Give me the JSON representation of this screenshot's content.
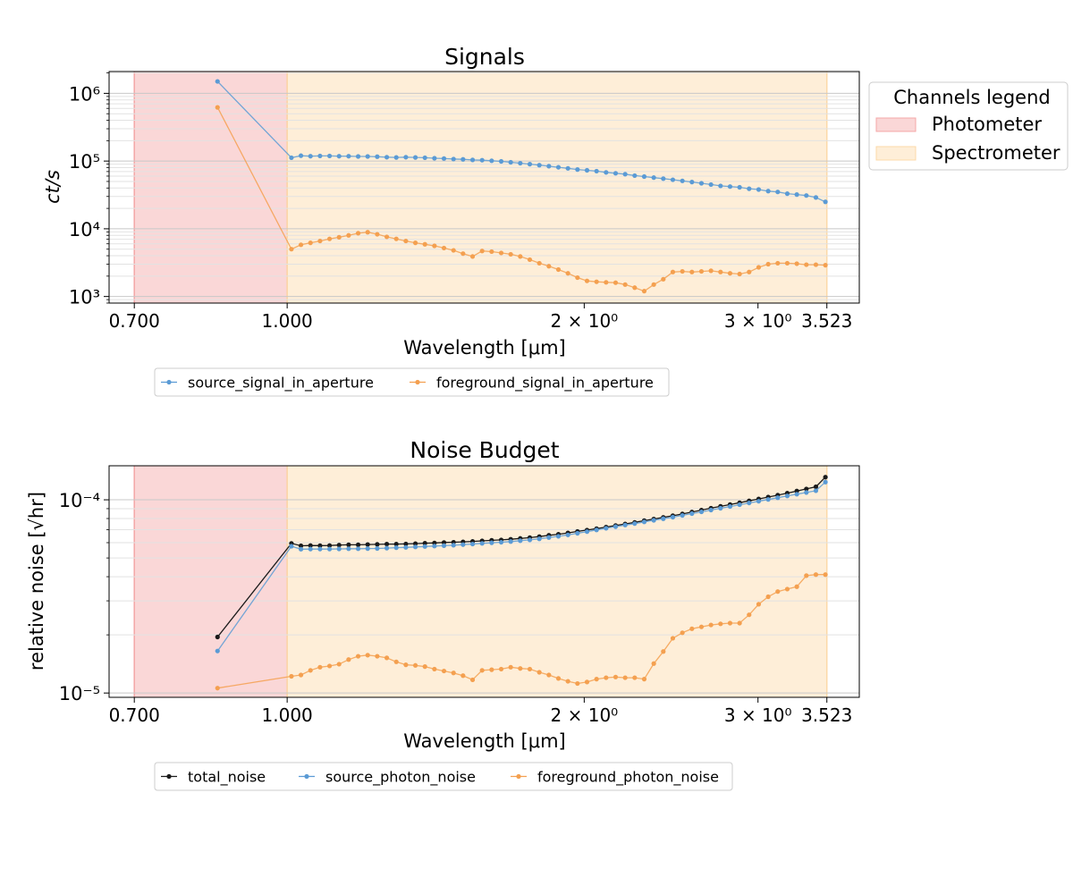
{
  "figure_legend": {
    "title": "Channels legend",
    "entries": [
      {
        "label": "Photometer",
        "color": "#f4a7a7"
      },
      {
        "label": "Spectrometer",
        "color": "#fcd9a8"
      }
    ]
  },
  "chart_data": [
    {
      "type": "line",
      "title": "Signals",
      "xlabel": "Wavelength [μm]",
      "ylabel": "ct/s",
      "xscale": "log",
      "yscale": "log",
      "xlim": [
        0.66,
        3.8
      ],
      "ylim": [
        800,
        2100000
      ],
      "xticks": [
        0.7,
        1.0,
        2.0,
        3.0,
        3.523
      ],
      "xticklabels": [
        "0.700",
        "1.000",
        "2 × 10⁰",
        "3 × 10⁰",
        "3.523"
      ],
      "yticks": [
        1000,
        10000,
        100000,
        1000000
      ],
      "yticklabels": [
        "10³",
        "10⁴",
        "10⁵",
        "10⁶"
      ],
      "grid": true,
      "channels": [
        {
          "name": "Photometer",
          "range": [
            0.7,
            1.0
          ],
          "color": "#f4a7a7"
        },
        {
          "name": "Spectrometer",
          "range": [
            1.0,
            3.523
          ],
          "color": "#fcd9a8"
        }
      ],
      "legend_location": "below",
      "x": [
        0.85,
        1.01,
        1.0327,
        1.0559,
        1.0797,
        1.104,
        1.1288,
        1.1542,
        1.1802,
        1.2067,
        1.2339,
        1.2617,
        1.29,
        1.3191,
        1.3488,
        1.3791,
        1.4101,
        1.4418,
        1.4743,
        1.5074,
        1.5414,
        1.576,
        1.6115,
        1.6478,
        1.6848,
        1.7227,
        1.7615,
        1.8011,
        1.8417,
        1.8831,
        1.9255,
        1.9688,
        2.0131,
        2.0584,
        2.1047,
        2.152,
        2.2005,
        2.25,
        2.3006,
        2.3524,
        2.4053,
        2.4594,
        2.5148,
        2.5714,
        2.6292,
        2.6884,
        2.7489,
        2.8107,
        2.874,
        2.9386,
        3.0048,
        3.0724,
        3.1415,
        3.2122,
        3.2845,
        3.3584,
        3.434,
        3.5112
      ],
      "series": [
        {
          "name": "source_signal_in_aperture",
          "color": "#5b9bd5",
          "values": [
            1500000,
            112000,
            120000,
            118000,
            119000,
            119000,
            118000,
            118000,
            117000,
            117000,
            116000,
            114000,
            113000,
            114000,
            113000,
            112000,
            110000,
            109000,
            107000,
            106000,
            104000,
            103000,
            101000,
            99000,
            96000,
            93000,
            90000,
            87000,
            84000,
            81000,
            78000,
            75000,
            73000,
            71000,
            68000,
            66000,
            64000,
            61000,
            59000,
            57000,
            55000,
            53000,
            51000,
            49000,
            47000,
            45000,
            43000,
            42000,
            41000,
            39000,
            38000,
            36000,
            35000,
            33000,
            32000,
            31000,
            29000,
            25000
          ]
        },
        {
          "name": "foreground_signal_in_aperture",
          "color": "#f4a050",
          "values": [
            620000,
            5000,
            5800,
            6200,
            6600,
            7100,
            7500,
            8000,
            8600,
            8900,
            8300,
            7600,
            7100,
            6600,
            6200,
            5900,
            5600,
            5200,
            4800,
            4300,
            3900,
            4700,
            4600,
            4400,
            4200,
            3900,
            3500,
            3100,
            2800,
            2500,
            2200,
            1900,
            1700,
            1650,
            1620,
            1600,
            1500,
            1350,
            1200,
            1500,
            1800,
            2300,
            2350,
            2300,
            2350,
            2400,
            2300,
            2200,
            2150,
            2300,
            2700,
            3000,
            3100,
            3100,
            3050,
            2950,
            2950,
            2900
          ]
        }
      ],
      "legend": [
        "source_signal_in_aperture",
        "foreground_signal_in_aperture"
      ]
    },
    {
      "type": "line",
      "title": "Noise Budget",
      "xlabel": "Wavelength [μm]",
      "ylabel": "relative noise [√hr]",
      "xscale": "log",
      "yscale": "log",
      "xlim": [
        0.66,
        3.8
      ],
      "ylim": [
        9.5e-06,
        0.00015
      ],
      "xticks": [
        0.7,
        1.0,
        2.0,
        3.0,
        3.523
      ],
      "xticklabels": [
        "0.700",
        "1.000",
        "2 × 10⁰",
        "3 × 10⁰",
        "3.523"
      ],
      "yticks": [
        1e-05,
        0.0001
      ],
      "yticklabels": [
        "10⁻⁵",
        "10⁻⁴"
      ],
      "grid": true,
      "channels": [
        {
          "name": "Photometer",
          "range": [
            0.7,
            1.0
          ],
          "color": "#f4a7a7"
        },
        {
          "name": "Spectrometer",
          "range": [
            1.0,
            3.523
          ],
          "color": "#fcd9a8"
        }
      ],
      "legend_location": "below",
      "x": [
        0.85,
        1.01,
        1.0327,
        1.0559,
        1.0797,
        1.104,
        1.1288,
        1.1542,
        1.1802,
        1.2067,
        1.2339,
        1.2617,
        1.29,
        1.3191,
        1.3488,
        1.3791,
        1.4101,
        1.4418,
        1.4743,
        1.5074,
        1.5414,
        1.576,
        1.6115,
        1.6478,
        1.6848,
        1.7227,
        1.7615,
        1.8011,
        1.8417,
        1.8831,
        1.9255,
        1.9688,
        2.0131,
        2.0584,
        2.1047,
        2.152,
        2.2005,
        2.25,
        2.3006,
        2.3524,
        2.4053,
        2.4594,
        2.5148,
        2.5714,
        2.6292,
        2.6884,
        2.7489,
        2.8107,
        2.874,
        2.9386,
        3.0048,
        3.0724,
        3.1415,
        3.2122,
        3.2845,
        3.3584,
        3.434,
        3.5112
      ],
      "series": [
        {
          "name": "total_noise",
          "color": "#1a1a1a",
          "values": [
            1.95e-05,
            5.95e-05,
            5.78e-05,
            5.8e-05,
            5.79e-05,
            5.8e-05,
            5.83e-05,
            5.85e-05,
            5.85e-05,
            5.87e-05,
            5.88e-05,
            5.9e-05,
            5.9e-05,
            5.91e-05,
            5.93e-05,
            5.96e-05,
            5.98e-05,
            6.01e-05,
            6.03e-05,
            6.06e-05,
            6.09e-05,
            6.13e-05,
            6.17e-05,
            6.2e-05,
            6.25e-05,
            6.31e-05,
            6.37e-05,
            6.45e-05,
            6.55e-05,
            6.63e-05,
            6.74e-05,
            6.86e-05,
            6.97e-05,
            7.09e-05,
            7.22e-05,
            7.36e-05,
            7.5e-05,
            7.64e-05,
            7.8e-05,
            7.95e-05,
            8.11e-05,
            8.27e-05,
            8.45e-05,
            8.65e-05,
            8.84e-05,
            9.05e-05,
            9.25e-05,
            9.45e-05,
            9.66e-05,
            9.88e-05,
            0.000101,
            0.0001033,
            0.0001057,
            0.0001083,
            0.000111,
            0.0001138,
            0.0001168,
            0.000131
          ]
        },
        {
          "name": "source_photon_noise",
          "color": "#5b9bd5",
          "values": [
            1.65e-05,
            5.75e-05,
            5.55e-05,
            5.56e-05,
            5.56e-05,
            5.56e-05,
            5.57e-05,
            5.58e-05,
            5.58e-05,
            5.59e-05,
            5.6e-05,
            5.62e-05,
            5.65e-05,
            5.67e-05,
            5.7e-05,
            5.73e-05,
            5.76e-05,
            5.79e-05,
            5.82e-05,
            5.86e-05,
            5.9e-05,
            5.95e-05,
            5.99e-05,
            6.03e-05,
            6.08e-05,
            6.14e-05,
            6.2e-05,
            6.28e-05,
            6.38e-05,
            6.47e-05,
            6.58e-05,
            6.71e-05,
            6.84e-05,
            6.98e-05,
            7.12e-05,
            7.26e-05,
            7.4e-05,
            7.53e-05,
            7.68e-05,
            7.83e-05,
            7.98e-05,
            8.13e-05,
            8.3e-05,
            8.48e-05,
            8.66e-05,
            8.85e-05,
            9.04e-05,
            9.23e-05,
            9.43e-05,
            9.63e-05,
            9.83e-05,
            0.0001004,
            0.0001025,
            0.0001047,
            0.0001069,
            0.0001091,
            0.0001114,
            0.0001235
          ]
        },
        {
          "name": "foreground_photon_noise",
          "color": "#f4a050",
          "values": [
            1.06e-05,
            1.22e-05,
            1.24e-05,
            1.31e-05,
            1.36e-05,
            1.38e-05,
            1.41e-05,
            1.49e-05,
            1.55e-05,
            1.57e-05,
            1.55e-05,
            1.52e-05,
            1.45e-05,
            1.4e-05,
            1.39e-05,
            1.37e-05,
            1.33e-05,
            1.3e-05,
            1.27e-05,
            1.23e-05,
            1.17e-05,
            1.31e-05,
            1.32e-05,
            1.33e-05,
            1.36e-05,
            1.34e-05,
            1.33e-05,
            1.28e-05,
            1.24e-05,
            1.19e-05,
            1.15e-05,
            1.12e-05,
            1.14e-05,
            1.18e-05,
            1.2e-05,
            1.21e-05,
            1.2e-05,
            1.2e-05,
            1.18e-05,
            1.42e-05,
            1.64e-05,
            1.92e-05,
            2.05e-05,
            2.15e-05,
            2.2e-05,
            2.25e-05,
            2.28e-05,
            2.3e-05,
            2.3e-05,
            2.54e-05,
            2.88e-05,
            3.15e-05,
            3.35e-05,
            3.45e-05,
            3.55e-05,
            4.05e-05,
            4.1e-05,
            4.1e-05
          ]
        }
      ],
      "legend": [
        "total_noise",
        "source_photon_noise",
        "foreground_photon_noise"
      ]
    }
  ]
}
